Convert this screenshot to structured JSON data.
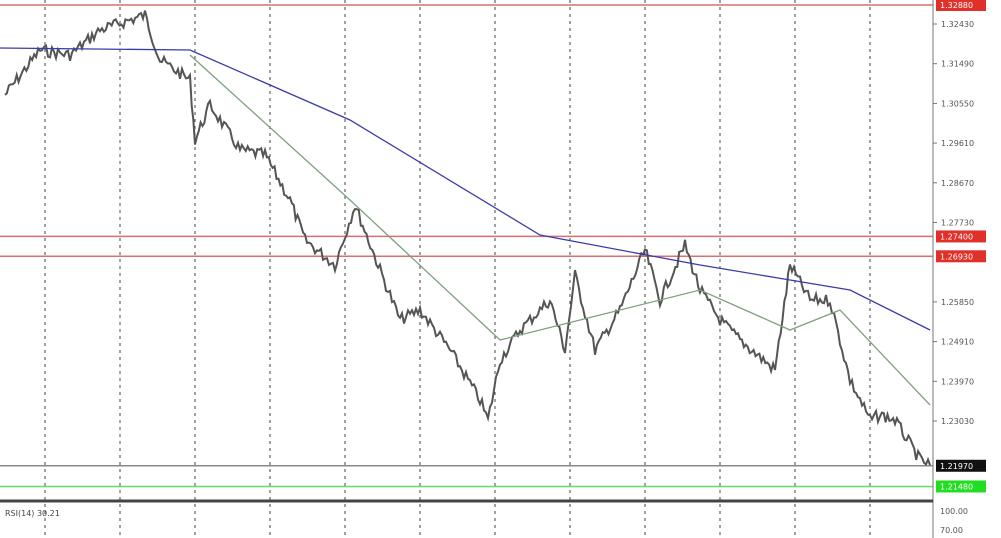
{
  "chart_data": {
    "type": "line",
    "title": "",
    "indicator_label": "RSI(14) 30.21",
    "price_axis": {
      "ylim": [
        1.212,
        1.33
      ],
      "ticks": [
        "1.32430",
        "1.31490",
        "1.30550",
        "1.29610",
        "1.28670",
        "1.27730",
        "1.25850",
        "1.24910",
        "1.23970",
        "1.23030"
      ],
      "tick_values": [
        1.3243,
        1.3149,
        1.3055,
        1.2961,
        1.2867,
        1.2773,
        1.2585,
        1.2491,
        1.2397,
        1.2303
      ]
    },
    "rsi_axis": {
      "ticks": [
        "100.00",
        "70.00"
      ]
    },
    "grid": {
      "vertical_dashed": true,
      "count": 12
    },
    "x_range": [
      0,
      930
    ],
    "series": [
      {
        "color": "#555555",
        "x": [
          5,
          40,
          70,
          100,
          145,
          160,
          190,
          195,
          210,
          240,
          265,
          290,
          305,
          335,
          355,
          380,
          400,
          420,
          450,
          480,
          488,
          500,
          520,
          550,
          565,
          575,
          595,
          620,
          645,
          660,
          685,
          700,
          720,
          740,
          775,
          790,
          810,
          830,
          850,
          870,
          880,
          895,
          920,
          930
        ],
        "values": [
          1.30749,
          1.31814,
          1.31696,
          1.32288,
          1.32643,
          1.31577,
          1.31104,
          1.29683,
          1.30512,
          1.29446,
          1.29328,
          1.28262,
          1.27315,
          1.26723,
          1.28144,
          1.26605,
          1.25421,
          1.25658,
          1.2471,
          1.23526,
          1.23053,
          1.24474,
          1.25184,
          1.25894,
          1.2471,
          1.26486,
          1.2471,
          1.25658,
          1.27078,
          1.25894,
          1.27197,
          1.26131,
          1.25421,
          1.24947,
          1.24237,
          1.26723,
          1.25894,
          1.25894,
          1.23999,
          1.23053,
          1.23171,
          1.23053,
          1.22106,
          1.21987
        ]
      },
      {
        "color": "#3c3ca8",
        "x": [
          0,
          190,
          350,
          540,
          700,
          790,
          850,
          930
        ],
        "values": [
          1.31862,
          1.31815,
          1.30157,
          1.27434,
          1.26723,
          1.26368,
          1.26131,
          1.25184
        ]
      },
      {
        "color": "#7fa07f",
        "x": [
          190,
          350,
          500,
          580,
          700,
          790,
          840,
          930
        ],
        "values": [
          1.31696,
          1.28262,
          1.24947,
          1.25421,
          1.26131,
          1.25184,
          1.25658,
          1.23408
        ]
      }
    ],
    "horizontal_levels": [
      {
        "label": "1.32880",
        "value": 1.3288,
        "color": "#e0302a",
        "line": "#d87070"
      },
      {
        "label": "1.27400",
        "value": 1.274,
        "color": "#e0302a",
        "line": "#d87070"
      },
      {
        "label": "1.26930",
        "value": 1.2693,
        "color": "#e0302a",
        "line": "#d87070"
      },
      {
        "label": "1.21970",
        "value": 1.2197,
        "color": "#111111",
        "line": "#888888"
      },
      {
        "label": "1.21480",
        "value": 1.2148,
        "color": "#22dd22",
        "line": "#66dd66"
      }
    ]
  }
}
